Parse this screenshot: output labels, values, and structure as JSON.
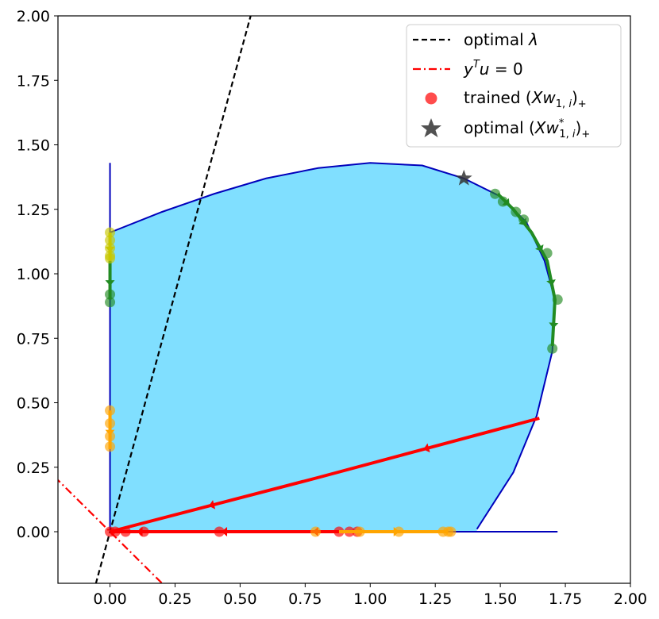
{
  "chart_data": {
    "type": "scatter",
    "title": "",
    "xlabel": "",
    "ylabel": "",
    "xlim": [
      -0.2,
      2.0
    ],
    "ylim": [
      -0.2,
      2.0
    ],
    "grid": false,
    "legend_position": "top-right",
    "x_ticks": [
      "0.00",
      "0.25",
      "0.50",
      "0.75",
      "1.00",
      "1.25",
      "1.50",
      "1.75",
      "2.00"
    ],
    "y_ticks": [
      "0.00",
      "0.25",
      "0.50",
      "0.75",
      "1.00",
      "1.25",
      "1.50",
      "1.75",
      "2.00"
    ],
    "x_tick_values": [
      0,
      0.25,
      0.5,
      0.75,
      1.0,
      1.25,
      1.5,
      1.75,
      2.0
    ],
    "y_tick_values": [
      0,
      0.25,
      0.5,
      0.75,
      1.0,
      1.25,
      1.5,
      1.75,
      2.0
    ],
    "legend": [
      {
        "label": "optimal λ",
        "style": "dashed",
        "color": "#000000"
      },
      {
        "label": "y^T u = 0",
        "style": "dashdot",
        "color": "#ff0000"
      },
      {
        "label": "trained (Xw_{1,i})_+",
        "style": "circle-marker",
        "color": "#ff0000"
      },
      {
        "label": "optimal (Xw*_{1,i})_+",
        "style": "star-marker",
        "color": "#333333"
      }
    ],
    "region": {
      "color": "#80dfff",
      "boundary_color": "#0000bb",
      "boundary_points": [
        [
          0,
          1.16
        ],
        [
          0.2,
          1.24
        ],
        [
          0.4,
          1.31
        ],
        [
          0.6,
          1.37
        ],
        [
          0.8,
          1.41
        ],
        [
          1.0,
          1.43
        ],
        [
          1.2,
          1.42
        ],
        [
          1.36,
          1.37
        ],
        [
          1.5,
          1.3
        ],
        [
          1.6,
          1.2
        ],
        [
          1.67,
          1.05
        ],
        [
          1.71,
          0.9
        ],
        [
          1.7,
          0.7
        ],
        [
          1.64,
          0.45
        ],
        [
          1.55,
          0.23
        ],
        [
          1.41,
          0.01
        ]
      ],
      "left_edge_top": 1.43,
      "bottom_edge_right": 1.72
    },
    "optimal_lambda_line": {
      "slope": 3.7,
      "intercept": 0
    },
    "yTu_line": {
      "slope": -1.0,
      "intercept": 0
    },
    "optimal_star": {
      "x": 1.36,
      "y": 1.37
    },
    "series": [
      {
        "color": "#ff0000",
        "paths": [
          {
            "points": [
              [
                1.65,
                0.44
              ],
              [
                0.8,
                0.21
              ],
              [
                0,
                0
              ]
            ],
            "width": 4
          },
          {
            "points": [
              [
                0.95,
                0
              ],
              [
                0.65,
                0
              ],
              [
                0.25,
                0
              ],
              [
                0.0,
                0
              ]
            ],
            "width": 4
          }
        ],
        "markers": [
          [
            0.88,
            0
          ],
          [
            0.92,
            0
          ],
          [
            0.95,
            0
          ],
          [
            0.42,
            0
          ],
          [
            0.13,
            0
          ],
          [
            0.06,
            0
          ],
          [
            0.02,
            0
          ],
          [
            0,
            0
          ]
        ]
      },
      {
        "color": "#ffa500",
        "paths": [
          {
            "points": [
              [
                0.88,
                0
              ],
              [
                1.3,
                0
              ]
            ],
            "width": 4
          },
          {
            "points": [
              [
                0,
                0.47
              ],
              [
                0,
                0.32
              ]
            ],
            "width": 4
          }
        ],
        "markers": [
          [
            0.79,
            0
          ],
          [
            0.96,
            0
          ],
          [
            1.11,
            0
          ],
          [
            1.28,
            0
          ],
          [
            1.3,
            0
          ],
          [
            1.31,
            0
          ],
          [
            0,
            0.47
          ],
          [
            0,
            0.42
          ],
          [
            0,
            0.37
          ],
          [
            0,
            0.33
          ]
        ]
      },
      {
        "color": "#228b22",
        "paths": [
          {
            "points": [
              [
                1.49,
                1.31
              ],
              [
                1.55,
                1.25
              ],
              [
                1.62,
                1.16
              ],
              [
                1.68,
                1.05
              ],
              [
                1.71,
                0.9
              ],
              [
                1.7,
                0.72
              ]
            ],
            "width": 4
          },
          {
            "points": [
              [
                0,
                1.05
              ],
              [
                0,
                0.9
              ]
            ],
            "width": 4
          }
        ],
        "markers": [
          [
            1.48,
            1.31
          ],
          [
            1.51,
            1.28
          ],
          [
            1.56,
            1.24
          ],
          [
            1.59,
            1.21
          ],
          [
            1.68,
            1.08
          ],
          [
            1.72,
            0.9
          ],
          [
            1.7,
            0.71
          ],
          [
            0,
            0.92
          ],
          [
            0,
            0.89
          ]
        ]
      },
      {
        "color": "#c8c800",
        "paths": [
          {
            "points": [
              [
                0,
                1.16
              ],
              [
                0,
                1.05
              ]
            ],
            "width": 4
          }
        ],
        "markers": [
          [
            0,
            1.16
          ],
          [
            0,
            1.13
          ],
          [
            0,
            1.1
          ],
          [
            0,
            1.07
          ],
          [
            0,
            1.06
          ]
        ]
      }
    ]
  }
}
